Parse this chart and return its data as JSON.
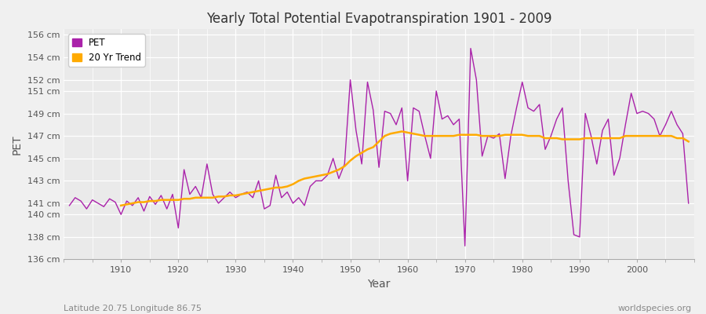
{
  "title": "Yearly Total Potential Evapotranspiration 1901 - 2009",
  "xlabel": "Year",
  "ylabel": "PET",
  "subtitle_left": "Latitude 20.75 Longitude 86.75",
  "subtitle_right": "worldspecies.org",
  "ylim": [
    136,
    156.5
  ],
  "ytick_labels": [
    "136 cm",
    "138 cm",
    "140 cm",
    "141 cm",
    "143 cm",
    "145 cm",
    "147 cm",
    "149 cm",
    "151 cm",
    "152 cm",
    "154 cm",
    "156 cm"
  ],
  "ytick_values": [
    136,
    138,
    140,
    141,
    143,
    145,
    147,
    149,
    151,
    152,
    154,
    156
  ],
  "xlim": [
    1900,
    2010
  ],
  "fig_bg_color": "#f0f0f0",
  "plot_bg_color": "#eaeaea",
  "pet_color": "#aa22aa",
  "trend_color": "#ffaa00",
  "pet_linewidth": 1.0,
  "trend_linewidth": 1.8,
  "years": [
    1901,
    1902,
    1903,
    1904,
    1905,
    1906,
    1907,
    1908,
    1909,
    1910,
    1911,
    1912,
    1913,
    1914,
    1915,
    1916,
    1917,
    1918,
    1919,
    1920,
    1921,
    1922,
    1923,
    1924,
    1925,
    1926,
    1927,
    1928,
    1929,
    1930,
    1931,
    1932,
    1933,
    1934,
    1935,
    1936,
    1937,
    1938,
    1939,
    1940,
    1941,
    1942,
    1943,
    1944,
    1945,
    1946,
    1947,
    1948,
    1949,
    1950,
    1951,
    1952,
    1953,
    1954,
    1955,
    1956,
    1957,
    1958,
    1959,
    1960,
    1961,
    1962,
    1963,
    1964,
    1965,
    1966,
    1967,
    1968,
    1969,
    1970,
    1971,
    1972,
    1973,
    1974,
    1975,
    1976,
    1977,
    1978,
    1979,
    1980,
    1981,
    1982,
    1983,
    1984,
    1985,
    1986,
    1987,
    1988,
    1989,
    1990,
    1991,
    1992,
    1993,
    1994,
    1995,
    1996,
    1997,
    1998,
    1999,
    2000,
    2001,
    2002,
    2003,
    2004,
    2005,
    2006,
    2007,
    2008,
    2009
  ],
  "pet_values": [
    140.8,
    141.5,
    141.2,
    140.5,
    141.3,
    141.0,
    140.7,
    141.4,
    141.1,
    140.0,
    141.2,
    140.8,
    141.5,
    140.3,
    141.6,
    140.9,
    141.7,
    140.5,
    141.8,
    138.8,
    144.0,
    141.8,
    142.5,
    141.5,
    144.5,
    141.8,
    141.0,
    141.5,
    142.0,
    141.5,
    141.8,
    142.0,
    141.5,
    143.0,
    140.5,
    140.8,
    143.5,
    141.5,
    142.0,
    141.0,
    141.5,
    140.8,
    142.5,
    143.0,
    143.0,
    143.5,
    145.0,
    143.2,
    144.5,
    152.0,
    147.5,
    144.5,
    151.8,
    149.3,
    144.2,
    149.2,
    149.0,
    148.0,
    149.5,
    143.0,
    149.5,
    149.2,
    147.0,
    145.0,
    151.0,
    148.5,
    148.8,
    148.0,
    148.5,
    137.2,
    154.8,
    152.0,
    145.2,
    147.0,
    146.8,
    147.2,
    143.2,
    147.0,
    149.5,
    151.8,
    149.5,
    149.2,
    149.8,
    145.8,
    147.0,
    148.5,
    149.5,
    143.0,
    138.2,
    138.0,
    149.0,
    147.0,
    144.5,
    147.5,
    148.5,
    143.5,
    145.0,
    148.0,
    150.8,
    149.0,
    149.2,
    149.0,
    148.5,
    147.0,
    148.0,
    149.2,
    148.0,
    147.2,
    141.0
  ],
  "trend_years": [
    1910,
    1911,
    1912,
    1913,
    1914,
    1915,
    1916,
    1917,
    1918,
    1919,
    1920,
    1921,
    1922,
    1923,
    1924,
    1925,
    1926,
    1927,
    1928,
    1929,
    1930,
    1931,
    1932,
    1933,
    1934,
    1935,
    1936,
    1937,
    1938,
    1939,
    1940,
    1941,
    1942,
    1943,
    1944,
    1945,
    1946,
    1947,
    1948,
    1949,
    1950,
    1951,
    1952,
    1953,
    1954,
    1955,
    1956,
    1957,
    1958,
    1959,
    1960,
    1961,
    1962,
    1963,
    1964,
    1965,
    1966,
    1967,
    1968,
    1969,
    1970,
    1971,
    1972,
    1973,
    1974,
    1975,
    1976,
    1977,
    1978,
    1979,
    1980,
    1981,
    1982,
    1983,
    1984,
    1985,
    1986,
    1987,
    1988,
    1989,
    1990,
    1991,
    1992,
    1993,
    1994,
    1995,
    1996,
    1997,
    1998,
    1999,
    2000,
    2001,
    2002,
    2003,
    2004,
    2005,
    2006,
    2007,
    2008,
    2009
  ],
  "trend_values": [
    140.8,
    140.9,
    141.0,
    141.1,
    141.1,
    141.2,
    141.2,
    141.3,
    141.3,
    141.3,
    141.3,
    141.4,
    141.4,
    141.5,
    141.5,
    141.5,
    141.5,
    141.6,
    141.6,
    141.7,
    141.7,
    141.8,
    141.9,
    142.0,
    142.1,
    142.2,
    142.3,
    142.4,
    142.4,
    142.5,
    142.7,
    143.0,
    143.2,
    143.3,
    143.4,
    143.5,
    143.6,
    143.8,
    144.0,
    144.3,
    144.8,
    145.2,
    145.5,
    145.8,
    146.0,
    146.5,
    147.0,
    147.2,
    147.3,
    147.4,
    147.3,
    147.2,
    147.1,
    147.0,
    147.0,
    147.0,
    147.0,
    147.0,
    147.0,
    147.1,
    147.1,
    147.1,
    147.1,
    147.0,
    147.0,
    147.0,
    147.0,
    147.1,
    147.1,
    147.1,
    147.1,
    147.0,
    147.0,
    147.0,
    146.8,
    146.8,
    146.8,
    146.7,
    146.7,
    146.7,
    146.7,
    146.8,
    146.8,
    146.8,
    146.8,
    146.8,
    146.8,
    146.8,
    147.0,
    147.0,
    147.0,
    147.0,
    147.0,
    147.0,
    147.0,
    147.0,
    147.0,
    146.8,
    146.8,
    146.5
  ]
}
